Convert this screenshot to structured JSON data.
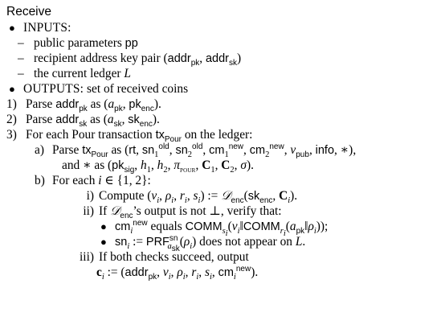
{
  "algorithm": {
    "title": "Receive",
    "inputs_label": "INPUTS:",
    "inputs": [
      "public parameters pp",
      "recipient address key pair (addr_pk, addr_sk)",
      "the current ledger L"
    ],
    "outputs_label": "OUTPUTS:",
    "outputs_text": "set of received coins",
    "steps": {
      "s1_num": "1)",
      "s2_num": "2)",
      "s3_num": "3)",
      "s1_text": "Parse addr_pk as (a_pk, pk_enc).",
      "s2_text": "Parse addr_sk as (a_sk, sk_enc).",
      "s3_text": "For each Pour transaction tx_Pour on the ledger:",
      "a_label": "a)",
      "a_line1": "Parse tx_Pour as (rt, sn_1^old, sn_2^old, cm_1^new, cm_2^new, v_pub, info, *),",
      "a_line2": "and * as (pk_sig, h_1, h_2, π_POUR, C_1, C_2, σ).",
      "b_label": "b)",
      "b_text": "For each i ∈ {1, 2}:",
      "i_label": "i)",
      "i_text": "Compute (v_i, ρ_i, r_i, s_i) := D_enc(sk_enc, C_i).",
      "ii_label": "ii)",
      "ii_text": "If D_enc's output is not ⊥, verify that:",
      "ii_check1": "cm_i^new equals COMM_{s_i}(v_i||COMM_{r_i}(a_pk||ρ_i));",
      "ii_check2": "sn_i := PRF^sn_{a_sk}(ρ_i) does not appear on L.",
      "iii_label": "iii)",
      "iii_line1": "If both checks succeed, output",
      "iii_line2": "c_i := (addr_pk, v_i, ρ_i, r_i, s_i, cm_i^new)."
    }
  }
}
